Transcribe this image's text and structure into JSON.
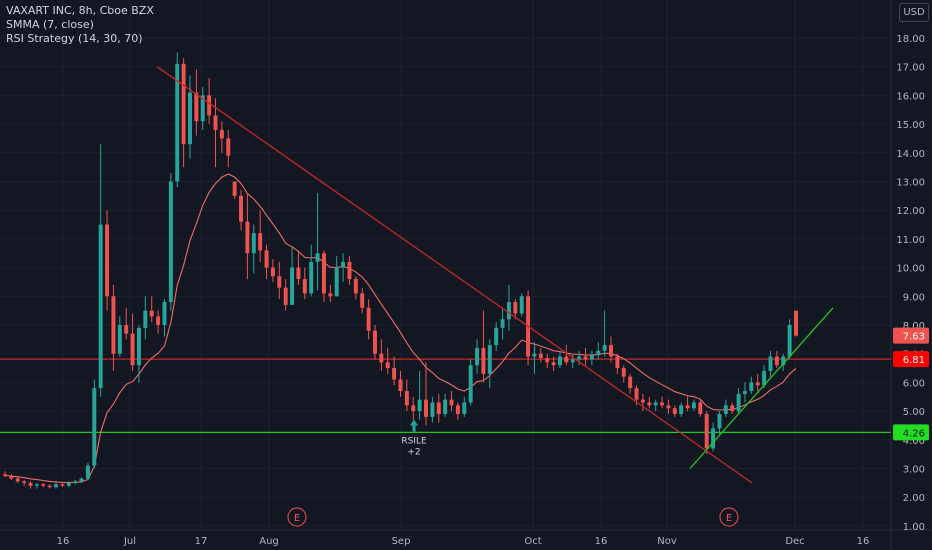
{
  "header": {
    "title": "VAXART INC, 8h, Cboe BZX",
    "indicator_smma": "SMMA (7, close)",
    "indicator_rsi": "RSI Strategy (14, 30, 70)"
  },
  "colors": {
    "background": "#131722",
    "up": "#26a69a",
    "down": "#ef5350",
    "smma": "#f06b6b",
    "resistance_line": "#c62828",
    "support_line": "#22c922",
    "label_last": "#ef5350",
    "label_red": "#ff0000",
    "label_green": "#22dd22"
  },
  "chart_data": {
    "type": "candlestick",
    "currency": "USD",
    "y_ticks": [
      "18.00",
      "17.00",
      "16.00",
      "15.00",
      "14.00",
      "13.00",
      "12.00",
      "11.00",
      "10.00",
      "9.00",
      "8.00",
      "7.00",
      "6.00",
      "5.00",
      "4.00",
      "3.00",
      "2.00",
      "1.00"
    ],
    "ylim": [
      0.6,
      18.6
    ],
    "x_ticks": [
      "16",
      "Jul",
      "17",
      "Aug",
      "Sep",
      "Oct",
      "16",
      "Nov",
      "Dec",
      "16"
    ],
    "events": [
      {
        "label": "E",
        "at": "late Jul"
      },
      {
        "label": "E",
        "at": "mid Nov"
      }
    ],
    "signal": {
      "label": "RSILE",
      "value": "+2",
      "price": 4.5
    },
    "price_labels": [
      {
        "value": "7.63",
        "style": "last"
      },
      {
        "value": "6.81",
        "style": "red"
      },
      {
        "value": "4.26",
        "style": "green"
      }
    ],
    "horizontal_lines": [
      {
        "name": "resistance-level",
        "price": 6.81,
        "color": "red"
      },
      {
        "name": "support-level",
        "price": 4.26,
        "color": "green"
      }
    ],
    "trend_lines": [
      {
        "name": "downtrend-line",
        "color": "red",
        "from": [
          "Jul 6",
          17.0
        ],
        "to": [
          "Nov 26",
          2.5
        ]
      },
      {
        "name": "uptrend-line",
        "color": "green",
        "from": [
          "Nov 10",
          3.0
        ],
        "to": [
          "Dec 9",
          8.6
        ]
      }
    ],
    "candles": [
      [
        2.8,
        2.9,
        2.7,
        2.75
      ],
      [
        2.75,
        2.8,
        2.6,
        2.65
      ],
      [
        2.65,
        2.7,
        2.5,
        2.55
      ],
      [
        2.55,
        2.6,
        2.4,
        2.5
      ],
      [
        2.5,
        2.55,
        2.3,
        2.4
      ],
      [
        2.4,
        2.5,
        2.3,
        2.45
      ],
      [
        2.45,
        2.5,
        2.35,
        2.4
      ],
      [
        2.4,
        2.45,
        2.3,
        2.35
      ],
      [
        2.35,
        2.5,
        2.3,
        2.45
      ],
      [
        2.45,
        2.5,
        2.35,
        2.4
      ],
      [
        2.4,
        2.55,
        2.35,
        2.5
      ],
      [
        2.5,
        2.6,
        2.45,
        2.55
      ],
      [
        2.55,
        2.7,
        2.5,
        2.65
      ],
      [
        2.65,
        3.2,
        2.6,
        3.1
      ],
      [
        3.1,
        6.1,
        3.0,
        5.8
      ],
      [
        5.8,
        14.3,
        5.5,
        11.5
      ],
      [
        11.5,
        12.0,
        8.5,
        9.0
      ],
      [
        9.0,
        9.4,
        6.4,
        7.0
      ],
      [
        7.0,
        8.3,
        6.9,
        8.0
      ],
      [
        8.0,
        8.6,
        7.5,
        7.7
      ],
      [
        7.7,
        8.4,
        6.4,
        6.6
      ],
      [
        6.6,
        8.0,
        6.0,
        7.9
      ],
      [
        7.9,
        9.0,
        7.5,
        8.5
      ],
      [
        8.5,
        9.0,
        8.1,
        8.3
      ],
      [
        8.3,
        8.5,
        7.7,
        8.0
      ],
      [
        8.0,
        8.9,
        7.6,
        8.8
      ],
      [
        8.8,
        13.3,
        8.5,
        13.0
      ],
      [
        13.0,
        17.5,
        12.8,
        17.1
      ],
      [
        17.1,
        17.3,
        13.5,
        14.3
      ],
      [
        14.3,
        16.7,
        13.8,
        16.1
      ],
      [
        16.1,
        16.9,
        14.6,
        15.1
      ],
      [
        15.1,
        16.3,
        14.8,
        16.0
      ],
      [
        16.0,
        16.6,
        15.0,
        15.3
      ],
      [
        15.3,
        15.9,
        13.5,
        14.8
      ],
      [
        14.8,
        15.1,
        14.0,
        14.5
      ],
      [
        14.5,
        14.8,
        13.5,
        13.9
      ],
      [
        13.0,
        13.0,
        12.4,
        12.5
      ],
      [
        12.5,
        12.7,
        11.3,
        11.6
      ],
      [
        11.6,
        12.6,
        9.6,
        10.5
      ],
      [
        10.5,
        11.5,
        9.8,
        11.2
      ],
      [
        11.2,
        12.0,
        10.2,
        10.6
      ],
      [
        10.6,
        10.8,
        9.6,
        10.0
      ],
      [
        10.0,
        10.3,
        9.5,
        9.7
      ],
      [
        9.7,
        10.2,
        8.9,
        9.3
      ],
      [
        9.3,
        9.6,
        8.5,
        8.7
      ],
      [
        8.7,
        10.7,
        8.7,
        10.0
      ],
      [
        10.0,
        10.6,
        9.4,
        9.6
      ],
      [
        9.6,
        10.0,
        8.9,
        9.1
      ],
      [
        9.1,
        10.8,
        9.0,
        10.2
      ],
      [
        10.2,
        12.6,
        9.2,
        10.5
      ],
      [
        10.5,
        10.6,
        8.8,
        9.1
      ],
      [
        9.1,
        9.4,
        8.8,
        9.0
      ],
      [
        9.0,
        10.4,
        9.0,
        10.0
      ],
      [
        10.0,
        10.5,
        9.5,
        10.2
      ],
      [
        10.2,
        10.4,
        9.4,
        9.6
      ],
      [
        9.6,
        9.7,
        8.9,
        9.1
      ],
      [
        9.1,
        9.3,
        8.4,
        8.6
      ],
      [
        8.6,
        8.9,
        7.5,
        7.8
      ],
      [
        7.8,
        8.0,
        6.8,
        7.0
      ],
      [
        7.0,
        7.5,
        6.4,
        6.7
      ],
      [
        6.7,
        7.2,
        6.3,
        6.5
      ],
      [
        6.5,
        6.9,
        5.9,
        6.1
      ],
      [
        6.1,
        6.4,
        5.5,
        5.7
      ],
      [
        5.7,
        6.1,
        5.0,
        5.2
      ],
      [
        5.2,
        5.5,
        4.7,
        5.0
      ],
      [
        5.0,
        6.4,
        4.7,
        5.4
      ],
      [
        5.4,
        6.7,
        4.5,
        4.8
      ],
      [
        4.8,
        5.5,
        4.6,
        5.3
      ],
      [
        5.3,
        5.6,
        4.6,
        4.9
      ],
      [
        4.9,
        5.6,
        4.8,
        5.4
      ],
      [
        5.4,
        5.7,
        5.0,
        5.2
      ],
      [
        5.2,
        5.3,
        4.7,
        4.9
      ],
      [
        4.9,
        5.5,
        4.8,
        5.3
      ],
      [
        5.3,
        6.8,
        5.2,
        6.6
      ],
      [
        6.6,
        7.5,
        6.3,
        7.2
      ],
      [
        7.2,
        8.5,
        6.0,
        6.3
      ],
      [
        6.3,
        7.5,
        5.8,
        7.3
      ],
      [
        7.3,
        8.1,
        7.1,
        7.9
      ],
      [
        7.9,
        8.6,
        7.5,
        8.2
      ],
      [
        8.2,
        9.4,
        7.8,
        8.8
      ],
      [
        8.8,
        8.9,
        8.2,
        8.4
      ],
      [
        8.4,
        9.1,
        8.3,
        9.0
      ],
      [
        9.0,
        9.2,
        6.6,
        6.9
      ],
      [
        6.9,
        7.4,
        6.3,
        7.0
      ],
      [
        7.0,
        7.2,
        6.7,
        6.85
      ],
      [
        6.85,
        7.0,
        6.5,
        6.7
      ],
      [
        6.7,
        6.9,
        6.4,
        6.6
      ],
      [
        6.6,
        7.1,
        6.5,
        6.9
      ],
      [
        6.9,
        7.3,
        6.6,
        6.7
      ],
      [
        6.7,
        7.0,
        6.5,
        6.8
      ],
      [
        6.8,
        7.1,
        6.6,
        6.9
      ],
      [
        6.9,
        7.2,
        6.6,
        6.8
      ],
      [
        6.8,
        7.1,
        6.6,
        6.95
      ],
      [
        6.95,
        7.4,
        6.8,
        7.1
      ],
      [
        7.1,
        8.5,
        6.9,
        7.3
      ],
      [
        7.3,
        7.6,
        6.7,
        6.9
      ],
      [
        6.9,
        7.0,
        6.3,
        6.5
      ],
      [
        6.5,
        6.6,
        6.0,
        6.2
      ],
      [
        6.2,
        6.3,
        5.6,
        5.8
      ],
      [
        5.8,
        5.9,
        5.2,
        5.4
      ],
      [
        5.4,
        5.6,
        5.0,
        5.3
      ],
      [
        5.3,
        5.5,
        5.1,
        5.2
      ],
      [
        5.2,
        5.4,
        5.0,
        5.3
      ],
      [
        5.3,
        5.5,
        5.1,
        5.2
      ],
      [
        5.2,
        5.4,
        4.9,
        5.1
      ],
      [
        5.1,
        5.2,
        4.8,
        4.9
      ],
      [
        4.9,
        5.3,
        4.8,
        5.2
      ],
      [
        5.2,
        5.5,
        5.0,
        5.1
      ],
      [
        5.1,
        5.4,
        5.0,
        5.3
      ],
      [
        5.3,
        5.4,
        4.8,
        4.9
      ],
      [
        4.9,
        5.0,
        3.5,
        3.7
      ],
      [
        3.7,
        4.6,
        3.6,
        4.4
      ],
      [
        4.4,
        5.0,
        4.2,
        4.9
      ],
      [
        4.9,
        5.4,
        4.8,
        5.2
      ],
      [
        5.2,
        5.3,
        4.9,
        5.0
      ],
      [
        5.0,
        5.8,
        4.9,
        5.6
      ],
      [
        5.6,
        6.0,
        5.3,
        5.7
      ],
      [
        5.7,
        6.2,
        5.6,
        6.0
      ],
      [
        6.0,
        6.3,
        5.7,
        5.9
      ],
      [
        5.9,
        6.6,
        5.8,
        6.4
      ],
      [
        6.4,
        7.1,
        6.2,
        6.9
      ],
      [
        6.9,
        7.1,
        6.5,
        6.6
      ],
      [
        6.6,
        7.0,
        6.4,
        6.9
      ],
      [
        6.9,
        8.2,
        6.8,
        8.0
      ],
      [
        8.5,
        8.5,
        7.6,
        7.63
      ]
    ]
  }
}
